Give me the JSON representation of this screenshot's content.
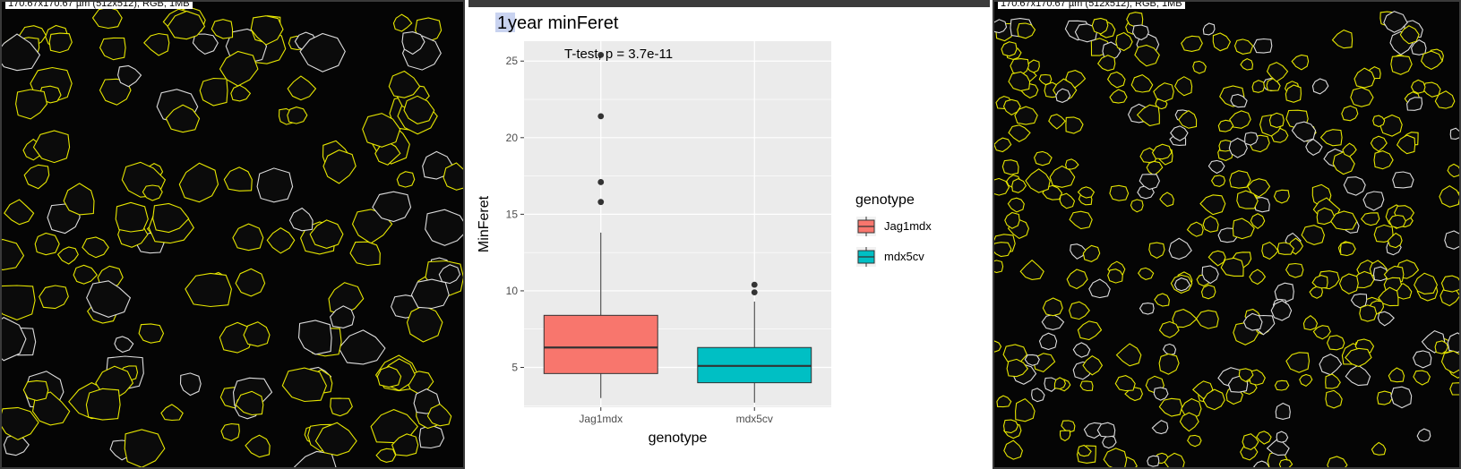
{
  "left_image": {
    "caption": "170.67x170.67 µm (512x512); RGB; 1MB",
    "icon": "segmented-muscle-fibers-image-1"
  },
  "right_image": {
    "caption": "170.67x170.67 µm (512x512); RGB; 1MB",
    "icon": "segmented-muscle-fibers-image-2"
  },
  "chart_data": {
    "type": "box",
    "title_prefix": "1",
    "title_rest": " year minFeret",
    "annotation": "T-test, p = 3.7e-11",
    "xlabel": "genotype",
    "ylabel": "MinFeret",
    "ylim": [
      2.4,
      26.3
    ],
    "yticks": [
      5,
      10,
      15,
      20,
      25
    ],
    "grid": true,
    "legend": {
      "title": "genotype",
      "placement": "right",
      "entries": [
        "Jag1mdx",
        "mdx5cv"
      ]
    },
    "categories": [
      "Jag1mdx",
      "mdx5cv"
    ],
    "colors": [
      "#F8766D",
      "#00BFC4"
    ],
    "series": [
      {
        "name": "Jag1mdx",
        "whisker_low": 3.0,
        "q1": 4.6,
        "median": 6.3,
        "q3": 8.4,
        "whisker_high": 13.8,
        "outliers": [
          15.8,
          17.1,
          21.4,
          25.4
        ]
      },
      {
        "name": "mdx5cv",
        "whisker_low": 2.7,
        "q1": 4.0,
        "median": 5.1,
        "q3": 6.3,
        "whisker_high": 9.3,
        "outliers": [
          9.9,
          10.4
        ]
      }
    ]
  }
}
